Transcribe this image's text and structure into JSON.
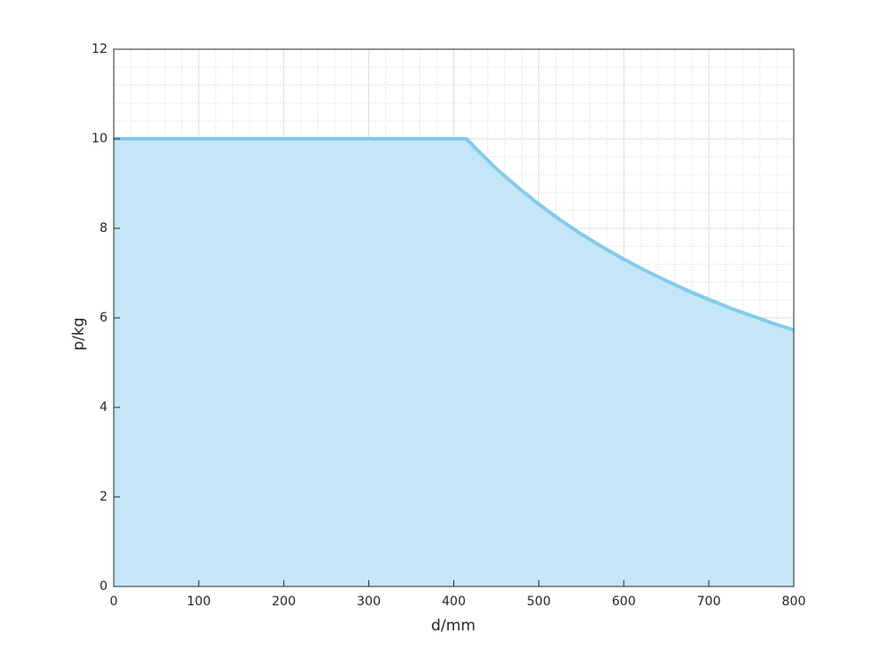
{
  "chart_data": {
    "type": "area",
    "x_label": "d/mm",
    "y_label": "p/kg",
    "x": [
      0,
      415,
      425,
      450,
      475,
      500,
      525,
      550,
      575,
      600,
      625,
      650,
      675,
      700,
      725,
      750,
      775,
      800
    ],
    "series": [
      {
        "color": "#82cbec",
        "fill": "#c5e6f6",
        "values": [
          10,
          10,
          9.8,
          9.33,
          8.92,
          8.54,
          8.19,
          7.87,
          7.58,
          7.31,
          7.06,
          6.83,
          6.61,
          6.41,
          6.22,
          6.05,
          5.88,
          5.73
        ]
      }
    ],
    "xlim": [
      0,
      800
    ],
    "xticks": [
      0,
      100,
      200,
      300,
      400,
      500,
      600,
      700,
      800
    ],
    "ylim": [
      0,
      12
    ],
    "yticks": [
      0,
      2,
      4,
      6,
      8,
      10,
      12
    ],
    "grid": true,
    "minor_grid": true
  }
}
